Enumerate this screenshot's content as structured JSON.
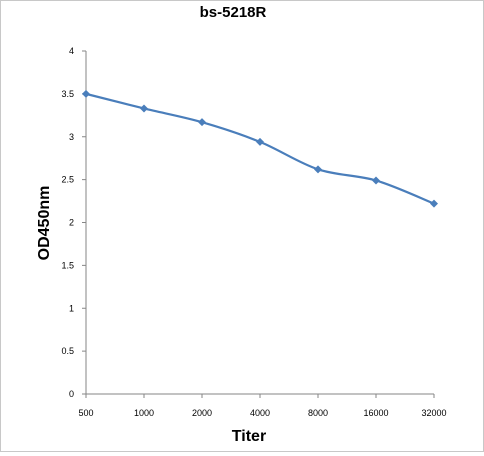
{
  "chart_data": {
    "type": "line",
    "title": "bs-5218R",
    "xlabel": "Titer",
    "ylabel": "OD450nm",
    "categories": [
      "500",
      "1000",
      "2000",
      "4000",
      "8000",
      "16000",
      "32000"
    ],
    "series": [
      {
        "values": [
          3.5,
          3.33,
          3.17,
          2.94,
          2.62,
          2.49,
          2.22
        ]
      }
    ],
    "ylim": [
      0,
      4
    ],
    "yticks": [
      "0",
      "0.5",
      "1",
      "1.5",
      "2",
      "2.5",
      "3",
      "3.5",
      "4"
    ],
    "grid": false,
    "legend": "none",
    "line_color": "#4a7ebb",
    "marker": "diamond"
  }
}
